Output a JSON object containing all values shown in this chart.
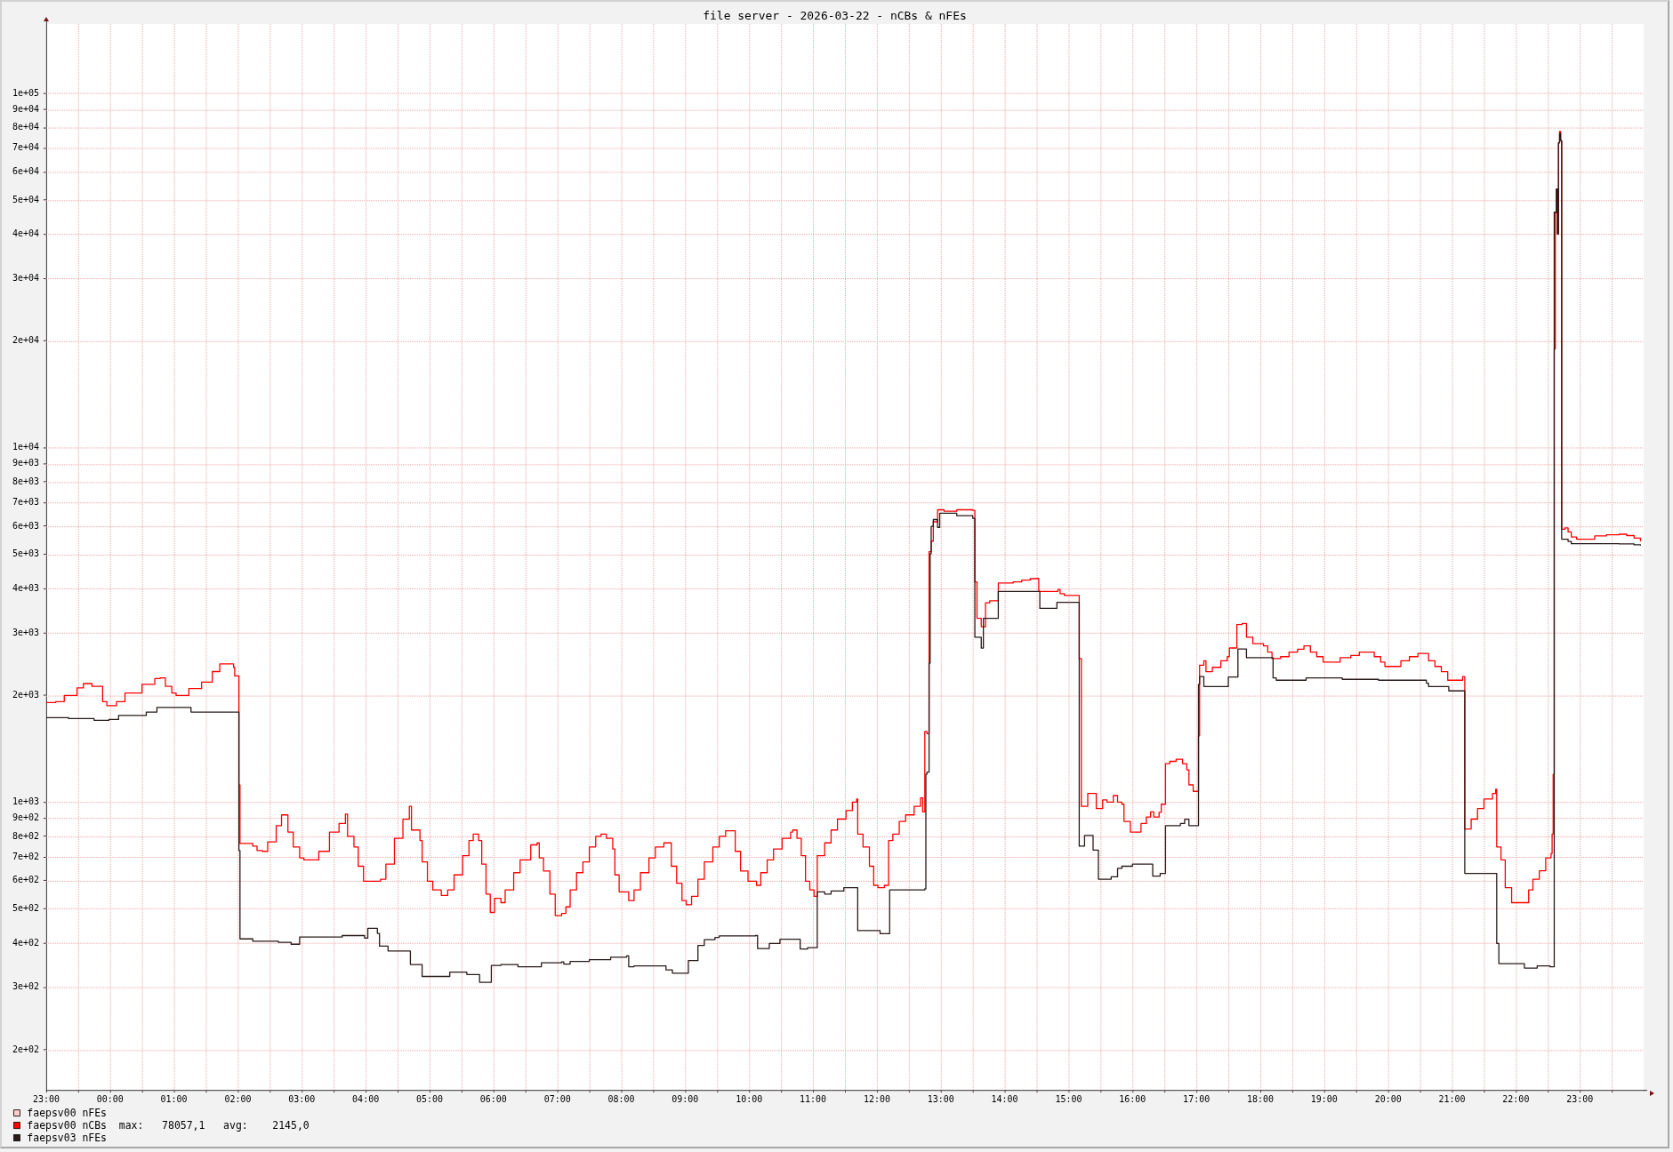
{
  "chart_data": {
    "type": "step",
    "title": "file server - 2026-03-22 - nCBs & nFEs",
    "xlim": [
      "2026-03-21T23:00",
      "2026-03-23T00:00"
    ],
    "xticks": [
      {
        "value": "2026-03-21T23:00",
        "label": "23:00"
      },
      {
        "value": "2026-03-21T23:30",
        "label": null
      },
      {
        "value": "2026-03-22T00:00",
        "label": "00:00"
      },
      {
        "value": "2026-03-22T00:30",
        "label": null
      },
      {
        "value": "2026-03-22T01:00",
        "label": "01:00"
      },
      {
        "value": "2026-03-22T01:30",
        "label": null
      },
      {
        "value": "2026-03-22T02:00",
        "label": "02:00"
      },
      {
        "value": "2026-03-22T02:30",
        "label": null
      },
      {
        "value": "2026-03-22T03:00",
        "label": "03:00"
      },
      {
        "value": "2026-03-22T03:30",
        "label": null
      },
      {
        "value": "2026-03-22T04:00",
        "label": "04:00"
      },
      {
        "value": "2026-03-22T04:30",
        "label": null
      },
      {
        "value": "2026-03-22T05:00",
        "label": "05:00"
      },
      {
        "value": "2026-03-22T05:30",
        "label": null
      },
      {
        "value": "2026-03-22T06:00",
        "label": "06:00"
      },
      {
        "value": "2026-03-22T06:30",
        "label": null
      },
      {
        "value": "2026-03-22T07:00",
        "label": "07:00"
      },
      {
        "value": "2026-03-22T07:30",
        "label": null
      },
      {
        "value": "2026-03-22T08:00",
        "label": "08:00"
      },
      {
        "value": "2026-03-22T08:30",
        "label": null
      },
      {
        "value": "2026-03-22T09:00",
        "label": "09:00"
      },
      {
        "value": "2026-03-22T09:30",
        "label": null
      },
      {
        "value": "2026-03-22T10:00",
        "label": "10:00"
      },
      {
        "value": "2026-03-22T10:30",
        "label": null
      },
      {
        "value": "2026-03-22T11:00",
        "label": "11:00"
      },
      {
        "value": "2026-03-22T11:30",
        "label": null
      },
      {
        "value": "2026-03-22T12:00",
        "label": "12:00"
      },
      {
        "value": "2026-03-22T12:30",
        "label": null
      },
      {
        "value": "2026-03-22T13:00",
        "label": "13:00"
      },
      {
        "value": "2026-03-22T13:30",
        "label": null
      },
      {
        "value": "2026-03-22T14:00",
        "label": "14:00"
      },
      {
        "value": "2026-03-22T14:30",
        "label": null
      },
      {
        "value": "2026-03-22T15:00",
        "label": "15:00"
      },
      {
        "value": "2026-03-22T15:30",
        "label": null
      },
      {
        "value": "2026-03-22T16:00",
        "label": "16:00"
      },
      {
        "value": "2026-03-22T16:30",
        "label": null
      },
      {
        "value": "2026-03-22T17:00",
        "label": "17:00"
      },
      {
        "value": "2026-03-22T17:30",
        "label": null
      },
      {
        "value": "2026-03-22T18:00",
        "label": "18:00"
      },
      {
        "value": "2026-03-22T18:30",
        "label": null
      },
      {
        "value": "2026-03-22T19:00",
        "label": "19:00"
      },
      {
        "value": "2026-03-22T19:30",
        "label": null
      },
      {
        "value": "2026-03-22T20:00",
        "label": "20:00"
      },
      {
        "value": "2026-03-22T20:30",
        "label": null
      },
      {
        "value": "2026-03-22T21:00",
        "label": "21:00"
      },
      {
        "value": "2026-03-22T21:30",
        "label": null
      },
      {
        "value": "2026-03-22T22:00",
        "label": "22:00"
      },
      {
        "value": "2026-03-22T22:30",
        "label": null
      },
      {
        "value": "2026-03-22T23:00",
        "label": "23:00"
      },
      {
        "value": "2026-03-22T23:30",
        "label": null
      }
    ],
    "ylim": [
      154,
      157000
    ],
    "yticks": [
      {
        "value": 200,
        "label": "2e+02"
      },
      {
        "value": 300,
        "label": "3e+02"
      },
      {
        "value": 400,
        "label": "4e+02"
      },
      {
        "value": 500,
        "label": "5e+02"
      },
      {
        "value": 600,
        "label": "6e+02"
      },
      {
        "value": 700,
        "label": "7e+02"
      },
      {
        "value": 800,
        "label": "8e+02"
      },
      {
        "value": 900,
        "label": "9e+02"
      },
      {
        "value": 1000,
        "label": "1e+03"
      },
      {
        "value": 2000,
        "label": "2e+03"
      },
      {
        "value": 3000,
        "label": "3e+03"
      },
      {
        "value": 4000,
        "label": "4e+03"
      },
      {
        "value": 5000,
        "label": "5e+03"
      },
      {
        "value": 6000,
        "label": "6e+03"
      },
      {
        "value": 7000,
        "label": "7e+03"
      },
      {
        "value": 8000,
        "label": "8e+03"
      },
      {
        "value": 9000,
        "label": "9e+03"
      },
      {
        "value": 10000,
        "label": "1e+04"
      },
      {
        "value": 20000,
        "label": "2e+04"
      },
      {
        "value": 30000,
        "label": "3e+04"
      },
      {
        "value": 40000,
        "label": "4e+04"
      },
      {
        "value": 50000,
        "label": "5e+04"
      },
      {
        "value": 60000,
        "label": "6e+04"
      },
      {
        "value": 70000,
        "label": "7e+04"
      },
      {
        "value": 80000,
        "label": "8e+04"
      },
      {
        "value": 90000,
        "label": "9e+04"
      },
      {
        "value": 100000,
        "label": "1e+05"
      }
    ],
    "log": true,
    "grid": true,
    "legend": "bottom",
    "series": [
      {
        "name": "faepsv00 nFEs",
        "color": "#ffcccc"
      },
      {
        "name": "faepsv00 nCBs  max:   78057,1   avg:    2145,0",
        "color": "#ff0000",
        "x": [
          "2026-03-21T23:00",
          "2026-03-21T23:09",
          "2026-03-21T23:17",
          "2026-03-21T23:29",
          "2026-03-21T23:35",
          "2026-03-21T23:43",
          "2026-03-21T23:53",
          "2026-03-21T23:57",
          "2026-03-22T00:06",
          "2026-03-22T00:14",
          "2026-03-22T00:30",
          "2026-03-22T00:42",
          "2026-03-22T00:47",
          "2026-03-22T00:52",
          "2026-03-22T00:58",
          "2026-03-22T01:02",
          "2026-03-22T01:14",
          "2026-03-22T01:26",
          "2026-03-22T01:36",
          "2026-03-22T01:43",
          "2026-03-22T01:56",
          "2026-03-22T01:57",
          "2026-03-22T02:01",
          "2026-03-22T02:02",
          "2026-03-22T02:14",
          "2026-03-22T02:18",
          "2026-03-22T02:23",
          "2026-03-22T02:28",
          "2026-03-22T02:36",
          "2026-03-22T02:41",
          "2026-03-22T02:47",
          "2026-03-22T02:52",
          "2026-03-22T02:58",
          "2026-03-22T03:02",
          "2026-03-22T03:16",
          "2026-03-22T03:26",
          "2026-03-22T03:35",
          "2026-03-22T03:41",
          "2026-03-22T03:43",
          "2026-03-22T03:49",
          "2026-03-22T03:53",
          "2026-03-22T03:58",
          "2026-03-22T04:14",
          "2026-03-22T04:19",
          "2026-03-22T04:27",
          "2026-03-22T04:35",
          "2026-03-22T04:41",
          "2026-03-22T04:43",
          "2026-03-22T04:51",
          "2026-03-22T04:53",
          "2026-03-22T04:58",
          "2026-03-22T05:03",
          "2026-03-22T05:11",
          "2026-03-22T05:17",
          "2026-03-22T05:23",
          "2026-03-22T05:31",
          "2026-03-22T05:37",
          "2026-03-22T05:41",
          "2026-03-22T05:46",
          "2026-03-22T05:49",
          "2026-03-22T05:53",
          "2026-03-22T05:57",
          "2026-03-22T06:01",
          "2026-03-22T06:07",
          "2026-03-22T06:11",
          "2026-03-22T06:19",
          "2026-03-22T06:25",
          "2026-03-22T06:35",
          "2026-03-22T06:41",
          "2026-03-22T06:43",
          "2026-03-22T06:47",
          "2026-03-22T06:53",
          "2026-03-22T06:58",
          "2026-03-22T07:04",
          "2026-03-22T07:08",
          "2026-03-22T07:12",
          "2026-03-22T07:18",
          "2026-03-22T07:24",
          "2026-03-22T07:30",
          "2026-03-22T07:36",
          "2026-03-22T07:41",
          "2026-03-22T07:46",
          "2026-03-22T07:52",
          "2026-03-22T07:54",
          "2026-03-22T07:58",
          "2026-03-22T08:07",
          "2026-03-22T08:12",
          "2026-03-22T08:18",
          "2026-03-22T08:26",
          "2026-03-22T08:32",
          "2026-03-22T08:40",
          "2026-03-22T08:47",
          "2026-03-22T08:52",
          "2026-03-22T08:57",
          "2026-03-22T09:01",
          "2026-03-22T09:06",
          "2026-03-22T09:12",
          "2026-03-22T09:18",
          "2026-03-22T09:26",
          "2026-03-22T09:32",
          "2026-03-22T09:38",
          "2026-03-22T09:47",
          "2026-03-22T09:52",
          "2026-03-22T09:59",
          "2026-03-22T10:07",
          "2026-03-22T10:11",
          "2026-03-22T10:17",
          "2026-03-22T10:23",
          "2026-03-22T10:31",
          "2026-03-22T10:39",
          "2026-03-22T10:41",
          "2026-03-22T10:45",
          "2026-03-22T10:49",
          "2026-03-22T10:53",
          "2026-03-22T10:57",
          "2026-03-22T11:01",
          "2026-03-22T11:04",
          "2026-03-22T11:11",
          "2026-03-22T11:17",
          "2026-03-22T11:23",
          "2026-03-22T11:31",
          "2026-03-22T11:37",
          "2026-03-22T11:41",
          "2026-03-22T11:42",
          "2026-03-22T11:47",
          "2026-03-22T11:53",
          "2026-03-22T11:57",
          "2026-03-22T12:01",
          "2026-03-22T12:07",
          "2026-03-22T12:11",
          "2026-03-22T12:15",
          "2026-03-22T12:21",
          "2026-03-22T12:27",
          "2026-03-22T12:35",
          "2026-03-22T12:41",
          "2026-03-22T12:43",
          "2026-03-22T12:45",
          "2026-03-22T12:47",
          "2026-03-22T12:49",
          "2026-03-22T12:51",
          "2026-03-22T12:53",
          "2026-03-22T12:57",
          "2026-03-22T13:03",
          "2026-03-22T13:15",
          "2026-03-22T13:30",
          "2026-03-22T13:32",
          "2026-03-22T13:34",
          "2026-03-22T13:38",
          "2026-03-22T13:42",
          "2026-03-22T13:46",
          "2026-03-22T13:54",
          "2026-03-22T14:08",
          "2026-03-22T14:16",
          "2026-03-22T14:24",
          "2026-03-22T14:31",
          "2026-03-22T14:32",
          "2026-03-22T14:50",
          "2026-03-22T14:52",
          "2026-03-22T14:56",
          "2026-03-22T15:10",
          "2026-03-22T15:12",
          "2026-03-22T15:18",
          "2026-03-22T15:26",
          "2026-03-22T15:32",
          "2026-03-22T15:36",
          "2026-03-22T15:42",
          "2026-03-22T15:46",
          "2026-03-22T15:50",
          "2026-03-22T15:52",
          "2026-03-22T15:58",
          "2026-03-22T16:08",
          "2026-03-22T16:13",
          "2026-03-22T16:17",
          "2026-03-22T16:20",
          "2026-03-22T16:25",
          "2026-03-22T16:27",
          "2026-03-22T16:31",
          "2026-03-22T16:35",
          "2026-03-22T16:41",
          "2026-03-22T16:47",
          "2026-03-22T16:51",
          "2026-03-22T16:53",
          "2026-03-22T16:57",
          "2026-03-22T17:02",
          "2026-03-22T17:03",
          "2026-03-22T17:07",
          "2026-03-22T17:09",
          "2026-03-22T17:15",
          "2026-03-22T17:23",
          "2026-03-22T17:29",
          "2026-03-22T17:31",
          "2026-03-22T17:38",
          "2026-03-22T17:43",
          "2026-03-22T17:47",
          "2026-03-22T17:53",
          "2026-03-22T18:03",
          "2026-03-22T18:07",
          "2026-03-22T18:11",
          "2026-03-22T18:19",
          "2026-03-22T18:27",
          "2026-03-22T18:35",
          "2026-03-22T18:41",
          "2026-03-22T18:47",
          "2026-03-22T18:53",
          "2026-03-22T18:59",
          "2026-03-22T19:15",
          "2026-03-22T19:25",
          "2026-03-22T19:33",
          "2026-03-22T19:47",
          "2026-03-22T19:53",
          "2026-03-22T19:57",
          "2026-03-22T20:12",
          "2026-03-22T20:20",
          "2026-03-22T20:28",
          "2026-03-22T20:38",
          "2026-03-22T20:44",
          "2026-03-22T20:50",
          "2026-03-22T20:56",
          "2026-03-22T21:10",
          "2026-03-22T21:12",
          "2026-03-22T21:18",
          "2026-03-22T21:24",
          "2026-03-22T21:30",
          "2026-03-22T21:38",
          "2026-03-22T21:41",
          "2026-03-22T21:42",
          "2026-03-22T21:46",
          "2026-03-22T21:50",
          "2026-03-22T21:56",
          "2026-03-22T22:12",
          "2026-03-22T22:16",
          "2026-03-22T22:22",
          "2026-03-22T22:28",
          "2026-03-22T22:33",
          "2026-03-22T22:34",
          "2026-03-22T22:35",
          "2026-03-22T22:36",
          "2026-03-22T22:37",
          "2026-03-22T22:38",
          "2026-03-22T22:39",
          "2026-03-22T22:40",
          "2026-03-22T22:41",
          "2026-03-22T22:42",
          "2026-03-22T22:43",
          "2026-03-22T22:46",
          "2026-03-22T22:49",
          "2026-03-22T22:52",
          "2026-03-22T22:57",
          "2026-03-22T23:14",
          "2026-03-22T23:25",
          "2026-03-22T23:37",
          "2026-03-22T23:44",
          "2026-03-22T23:51",
          "2026-03-22T23:57"
        ],
        "values": [
          1910,
          1920,
          2000,
          2100,
          2160,
          2120,
          1920,
          1870,
          1920,
          2030,
          2150,
          2230,
          2240,
          2120,
          2030,
          2000,
          2090,
          2180,
          2335,
          2455,
          2400,
          2270,
          1117,
          764,
          751,
          730,
          726,
          772,
          858,
          920,
          823,
          747,
          696,
          687,
          726,
          823,
          870,
          925,
          800,
          747,
          659,
          598,
          606,
          668,
          790,
          894,
          972,
          834,
          779,
          678,
          598,
          565,
          545,
          565,
          623,
          706,
          779,
          812,
          779,
          668,
          550,
          488,
          535,
          520,
          565,
          632,
          687,
          757,
          767,
          696,
          639,
          550,
          478,
          485,
          506,
          565,
          632,
          678,
          747,
          800,
          812,
          790,
          737,
          623,
          558,
          527,
          565,
          632,
          696,
          747,
          767,
          659,
          590,
          527,
          513,
          542,
          606,
          678,
          747,
          800,
          830,
          726,
          639,
          598,
          582,
          632,
          687,
          737,
          790,
          823,
          834,
          790,
          706,
          598,
          565,
          542,
          706,
          767,
          834,
          895,
          946,
          1000,
          1020,
          812,
          747,
          659,
          582,
          573,
          582,
          779,
          812,
          882,
          920,
          973,
          1028,
          938,
          1582,
          1560,
          5090,
          5450,
          6180,
          6680,
          6620,
          6680,
          6660,
          4180,
          3300,
          3125,
          3650,
          3700,
          4150,
          4180,
          4230,
          4270,
          4280,
          3930,
          3980,
          3875,
          3830,
          2540,
          972,
          1057,
          959,
          1014,
          1000,
          1043,
          1000,
          986,
          882,
          823,
          870,
          907,
          938,
          907,
          935,
          986,
          1284,
          1303,
          1321,
          1284,
          1232,
          1118,
          1072,
          1538,
          2433,
          2504,
          2334,
          2400,
          2504,
          2572,
          2721,
          3170,
          3190,
          2920,
          2800,
          2760,
          2650,
          2540,
          2572,
          2650,
          2700,
          2760,
          2650,
          2572,
          2483,
          2555,
          2594,
          2650,
          2572,
          2483,
          2414,
          2504,
          2572,
          2625,
          2504,
          2414,
          2334,
          2207,
          2260,
          839,
          895,
          959,
          1020,
          1057,
          1087,
          747,
          687,
          573,
          520,
          565,
          606,
          640,
          696,
          716,
          812,
          1198,
          19000,
          46000,
          53700,
          40100,
          72500,
          78057.1,
          73500,
          5890,
          5940,
          5785,
          5600,
          5520,
          5635,
          5680,
          5700,
          5650,
          5560,
          5455
        ]
      },
      {
        "name": "faepsv03 nFEs",
        "color": "#2a1a1a",
        "x": [
          "2026-03-21T23:00",
          "2026-03-21T23:21",
          "2026-03-21T23:45",
          "2026-03-21T23:59",
          "2026-03-22T00:08",
          "2026-03-22T00:34",
          "2026-03-22T00:44",
          "2026-03-22T01:16",
          "2026-03-22T02:01",
          "2026-03-22T02:02",
          "2026-03-22T02:14",
          "2026-03-22T02:38",
          "2026-03-22T02:50",
          "2026-03-22T02:58",
          "2026-03-22T03:38",
          "2026-03-22T03:59",
          "2026-03-22T04:02",
          "2026-03-22T04:11",
          "2026-03-22T04:13",
          "2026-03-22T04:21",
          "2026-03-22T04:42",
          "2026-03-22T04:53",
          "2026-03-22T05:19",
          "2026-03-22T05:35",
          "2026-03-22T05:47",
          "2026-03-22T05:58",
          "2026-03-22T06:07",
          "2026-03-22T06:23",
          "2026-03-22T06:45",
          "2026-03-22T07:04",
          "2026-03-22T07:06",
          "2026-03-22T07:12",
          "2026-03-22T07:30",
          "2026-03-22T07:50",
          "2026-03-22T08:05",
          "2026-03-22T08:07",
          "2026-03-22T08:12",
          "2026-03-22T08:42",
          "2026-03-22T08:48",
          "2026-03-22T09:03",
          "2026-03-22T09:12",
          "2026-03-22T09:18",
          "2026-03-22T09:28",
          "2026-03-22T09:32",
          "2026-03-22T10:06",
          "2026-03-22T10:08",
          "2026-03-22T10:19",
          "2026-03-22T10:29",
          "2026-03-22T10:48",
          "2026-03-22T10:55",
          "2026-03-22T11:04",
          "2026-03-22T11:11",
          "2026-03-22T11:17",
          "2026-03-22T11:29",
          "2026-03-22T11:42",
          "2026-03-22T12:03",
          "2026-03-22T12:12",
          "2026-03-22T12:45",
          "2026-03-22T12:46",
          "2026-03-22T12:47",
          "2026-03-22T12:49",
          "2026-03-22T12:50",
          "2026-03-22T12:51",
          "2026-03-22T12:53",
          "2026-03-22T12:57",
          "2026-03-22T12:59",
          "2026-03-22T13:15",
          "2026-03-22T13:30",
          "2026-03-22T13:32",
          "2026-03-22T13:38",
          "2026-03-22T13:40",
          "2026-03-22T13:54",
          "2026-03-22T14:33",
          "2026-03-22T14:49",
          "2026-03-22T15:10",
          "2026-03-22T15:15",
          "2026-03-22T15:23",
          "2026-03-22T15:28",
          "2026-03-22T15:40",
          "2026-03-22T15:46",
          "2026-03-22T15:50",
          "2026-03-22T16:00",
          "2026-03-22T16:19",
          "2026-03-22T16:26",
          "2026-03-22T16:31",
          "2026-03-22T16:45",
          "2026-03-22T16:49",
          "2026-03-22T16:53",
          "2026-03-22T17:02",
          "2026-03-22T17:03",
          "2026-03-22T17:07",
          "2026-03-22T17:30",
          "2026-03-22T17:39",
          "2026-03-22T17:47",
          "2026-03-22T18:12",
          "2026-03-22T18:15",
          "2026-03-22T18:43",
          "2026-03-22T19:17",
          "2026-03-22T19:51",
          "2026-03-22T20:36",
          "2026-03-22T20:38",
          "2026-03-22T20:57",
          "2026-03-22T21:12",
          "2026-03-22T21:42",
          "2026-03-22T21:44",
          "2026-03-22T22:08",
          "2026-03-22T22:20",
          "2026-03-22T22:32",
          "2026-03-22T22:36",
          "2026-03-22T22:38",
          "2026-03-22T22:39",
          "2026-03-22T22:40",
          "2026-03-22T22:41",
          "2026-03-22T22:42",
          "2026-03-22T22:43",
          "2026-03-22T22:49",
          "2026-03-22T22:52",
          "2026-03-22T23:37",
          "2026-03-22T23:51",
          "2026-03-22T23:57"
        ],
        "values": [
          1730,
          1720,
          1700,
          1710,
          1755,
          1793,
          1850,
          1795,
          730,
          411,
          405,
          402,
          397,
          416,
          420,
          413,
          440,
          426,
          392,
          380,
          348,
          322,
          331,
          326,
          310,
          346,
          348,
          343,
          352,
          354,
          349,
          355,
          359,
          365,
          368,
          343,
          345,
          336,
          329,
          357,
          394,
          409,
          415,
          419,
          420,
          386,
          399,
          410,
          385,
          388,
          558,
          550,
          561,
          573,
          434,
          425,
          565,
          569,
          1198,
          1215,
          2465,
          5020,
          6000,
          6270,
          5960,
          6530,
          6430,
          6320,
          2920,
          2720,
          3300,
          3930,
          3520,
          3660,
          751,
          805,
          732,
          606,
          615,
          650,
          659,
          668,
          618,
          629,
          858,
          870,
          894,
          858,
          2148,
          2259,
          2119,
          2253,
          2704,
          2555,
          2240,
          2207,
          2240,
          2220,
          2207,
          2165,
          2119,
          2059,
          629,
          399,
          350,
          340,
          345,
          343,
          46200,
          53700,
          40100,
          72500,
          77000,
          73500,
          5520,
          5440,
          5360,
          5350,
          5320,
          5310
        ]
      }
    ]
  }
}
